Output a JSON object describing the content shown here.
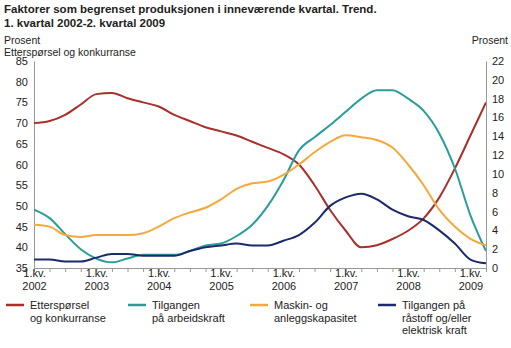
{
  "chart_data": {
    "type": "line",
    "title": "Faktorer som begrenset produksjonen i inneværende kvartal. Trend.",
    "subtitle": "1. kvartal 2002-2. kvartal 2009",
    "y_label": "Prosent\nEtterspørsel og konkurranse",
    "y2_label": "Prosent",
    "categories": [
      "1.kv.\n2002",
      null,
      null,
      null,
      "1.kv.\n2003",
      null,
      null,
      null,
      "1.kv.\n2004",
      null,
      null,
      null,
      "1.kv.\n2005",
      null,
      null,
      null,
      "1.kv.\n2006",
      null,
      null,
      null,
      "1.kv.\n2007",
      null,
      null,
      null,
      "1.kv.\n2008",
      null,
      null,
      null,
      "1.kv.\n2009",
      null
    ],
    "ylim": [
      35,
      85
    ],
    "yticks": [
      35,
      40,
      45,
      50,
      55,
      60,
      65,
      70,
      75,
      80,
      85
    ],
    "y2lim": [
      0,
      22
    ],
    "y2ticks": [
      0,
      2,
      4,
      6,
      8,
      10,
      12,
      14,
      16,
      18,
      20,
      22
    ],
    "grid": false,
    "legend": "bottom",
    "series": [
      {
        "name": "Etterspørsel\nog konkurranse",
        "color": "#a8302b",
        "values": [
          70,
          70.5,
          72,
          74.5,
          77,
          77.3,
          76,
          75,
          74,
          72,
          70.5,
          69,
          68,
          67,
          65.5,
          64,
          62.5,
          60,
          55,
          49,
          44,
          40,
          40.5,
          42,
          44,
          47,
          52,
          59,
          67,
          75
        ]
      },
      {
        "name": "Tilgangen\npå arbeidskraft",
        "color": "#2a9d9a",
        "axis": "y2",
        "values": [
          6.2,
          5.3,
          3.6,
          2.0,
          1.0,
          0.6,
          1.0,
          1.4,
          1.4,
          1.4,
          1.8,
          2.4,
          2.6,
          3.4,
          4.6,
          6.6,
          9.3,
          12.5,
          13.9,
          15.2,
          16.6,
          18.0,
          18.9,
          18.9,
          18.0,
          16.7,
          14.3,
          10.6,
          5.6,
          1.8
        ]
      },
      {
        "name": "Maskin- og\nanleggskapasitet",
        "color": "#f5a93c",
        "axis": "y2",
        "values": [
          4.6,
          4.4,
          3.5,
          3.3,
          3.5,
          3.5,
          3.5,
          3.7,
          4.4,
          5.3,
          5.9,
          6.4,
          7.3,
          8.4,
          9.0,
          9.2,
          9.9,
          11.0,
          12.3,
          13.4,
          14.1,
          13.9,
          13.6,
          12.8,
          11.0,
          8.8,
          6.2,
          4.4,
          3.1,
          2.4
        ]
      },
      {
        "name": "Tilgangen på\nråstoff og/eller\nelektrisk kraft",
        "color": "#1b2a6b",
        "axis": "y2",
        "values": [
          0.9,
          0.9,
          0.7,
          0.7,
          1.1,
          1.5,
          1.5,
          1.3,
          1.3,
          1.3,
          1.8,
          2.2,
          2.4,
          2.6,
          2.4,
          2.4,
          2.9,
          3.5,
          4.8,
          6.6,
          7.5,
          7.9,
          7.3,
          6.2,
          5.5,
          5.1,
          4.0,
          2.6,
          0.9,
          0.5
        ]
      }
    ]
  }
}
